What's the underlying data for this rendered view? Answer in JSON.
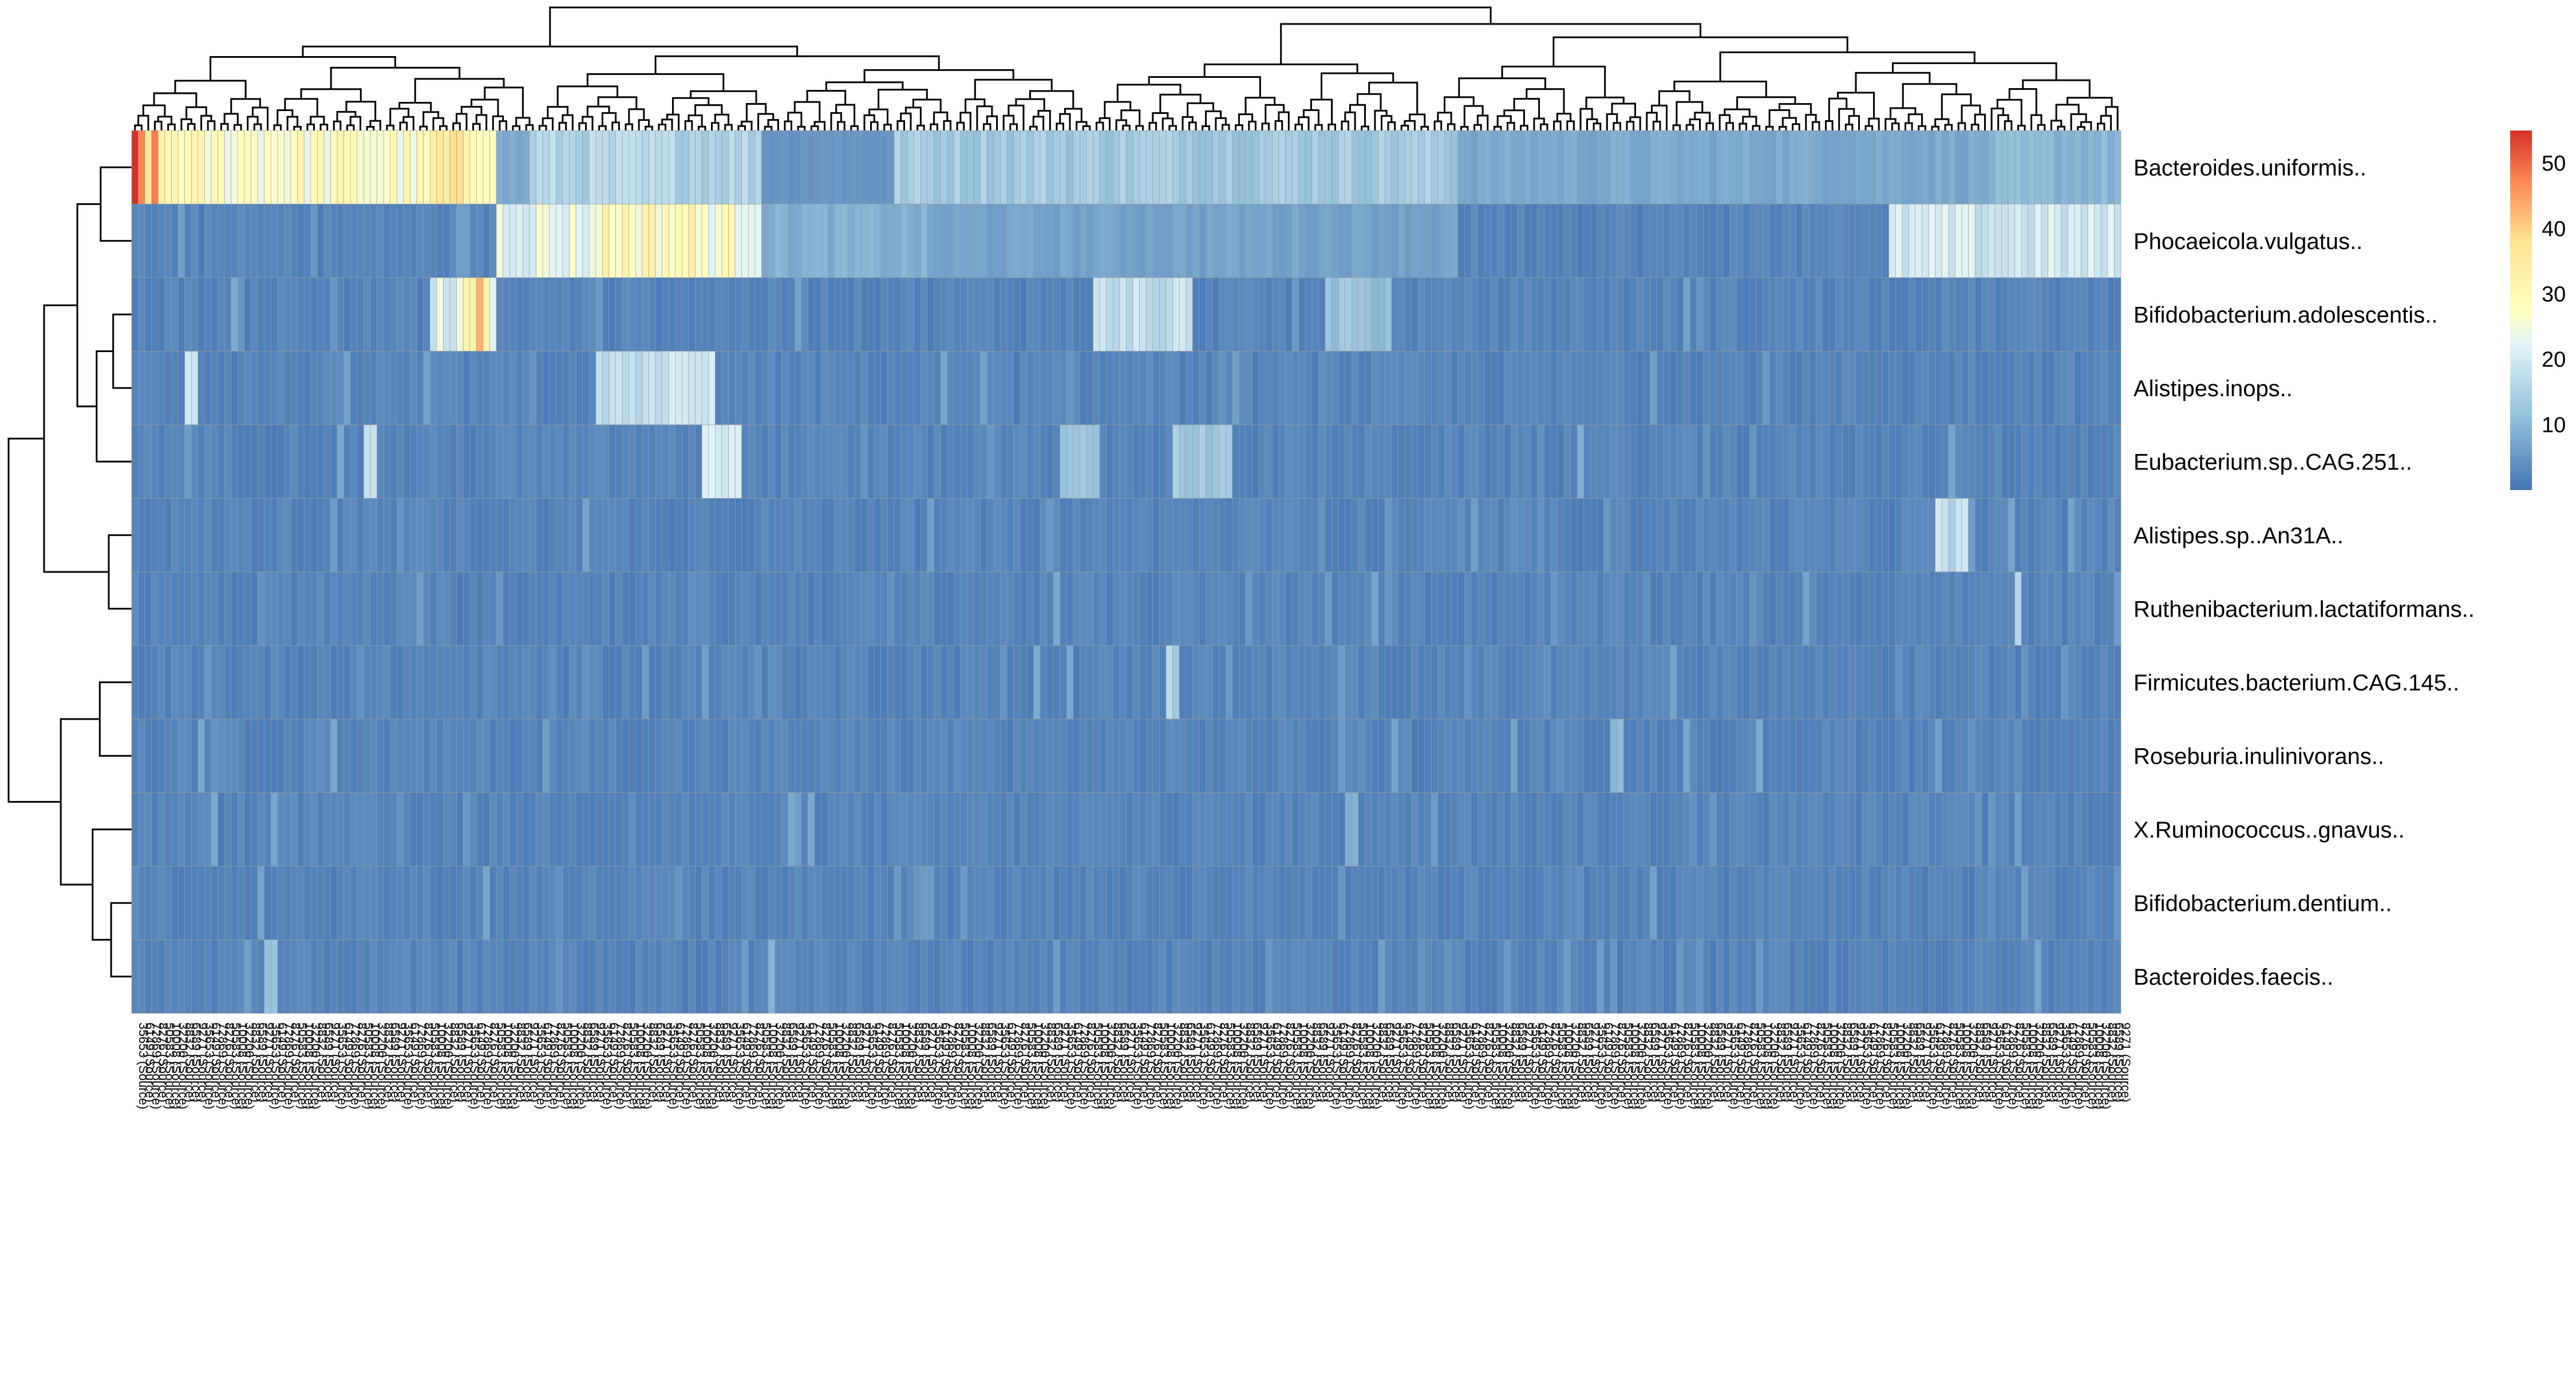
{
  "chart_data": {
    "type": "heatmap",
    "rows": [
      "Bacteroides.uniformis..",
      "Phocaeicola.vulgatus..",
      "Bifidobacterium.adolescentis..",
      "Alistipes.inops..",
      "Eubacterium.sp..CAG.251..",
      "Alistipes.sp..An31A..",
      "Ruthenibacterium.lactatiformans..",
      "Firmicutes.bacterium.CAG.145..",
      "Roseburia.inulinivorans..",
      "X.Ruminococcus..gnavus..",
      "Bifidobacterium.dentium..",
      "Bacteroides.faecis.."
    ],
    "n_columns": 300,
    "colorbar": {
      "ticks": [
        10,
        20,
        30,
        40,
        50
      ],
      "range": [
        0,
        55
      ]
    },
    "colors": {
      "low": "#4575b4",
      "mid": "#ffffbf",
      "high": "#d73027",
      "cell_border": "#9a9a9a"
    },
    "row_dendrogram": "left",
    "column_dendrogram": "top",
    "column_labels_note": "Column labels are unreadably overlapped sample IDs (e.g. \"... (Source)\")",
    "column_label_samples": [
      "35653 (Source)",
      "6149 (Source)",
      "72869 (Source)",
      "8276 (Source)",
      "50583 (Source)",
      "10008 (Source)",
      "32206 (Source)",
      "8832 (Source)",
      "6589 (Source)",
      "9271 (Source)"
    ],
    "row_hotspots": [
      [
        [
          0,
          1,
          55
        ],
        [
          1,
          2,
          48
        ],
        [
          2,
          4,
          42
        ],
        [
          4,
          8,
          32
        ],
        [
          8,
          45,
          28
        ],
        [
          45,
          55,
          34
        ],
        [
          55,
          60,
          8
        ],
        [
          60,
          95,
          16
        ],
        [
          95,
          115,
          5
        ],
        [
          115,
          200,
          14
        ],
        [
          200,
          280,
          8
        ],
        [
          280,
          300,
          10
        ]
      ],
      [
        [
          55,
          70,
          24
        ],
        [
          70,
          85,
          30
        ],
        [
          85,
          95,
          27
        ],
        [
          95,
          120,
          9
        ],
        [
          120,
          200,
          7
        ],
        [
          265,
          300,
          20
        ]
      ],
      [
        [
          45,
          50,
          22
        ],
        [
          50,
          53,
          38
        ],
        [
          53,
          55,
          28
        ],
        [
          145,
          160,
          18
        ],
        [
          180,
          190,
          12
        ]
      ],
      [
        [
          8,
          10,
          20
        ],
        [
          70,
          80,
          17
        ],
        [
          80,
          88,
          22
        ]
      ],
      [
        [
          35,
          37,
          20
        ],
        [
          86,
          92,
          20
        ],
        [
          140,
          146,
          12
        ],
        [
          157,
          166,
          14
        ]
      ],
      [
        [
          272,
          277,
          18
        ]
      ],
      [
        [
          284,
          285,
          16
        ]
      ],
      [
        [
          156,
          158,
          16
        ]
      ],
      [
        [
          223,
          225,
          10
        ]
      ],
      [
        [
          183,
          185,
          10
        ]
      ],
      [
        [
          53,
          54,
          8
        ]
      ],
      [
        [
          20,
          22,
          12
        ],
        [
          96,
          97,
          9
        ]
      ]
    ]
  }
}
